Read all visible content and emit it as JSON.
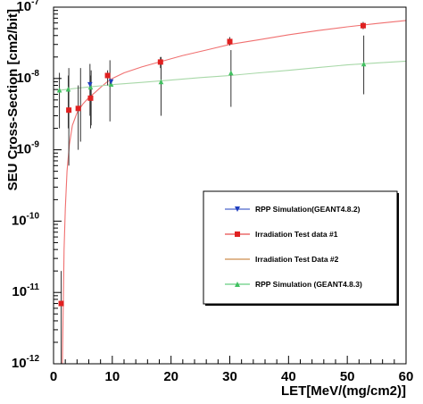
{
  "chart_data": {
    "type": "scatter",
    "xlabel": "LET[MeV/(mg/cm2)]",
    "ylabel": "SEU Cross-Section [cm2/bit]",
    "xlim": [
      0,
      60
    ],
    "ylim": [
      1e-12,
      1e-07
    ],
    "yscale": "log",
    "x_ticks": [
      "0",
      "10",
      "20",
      "30",
      "40",
      "50",
      "60"
    ],
    "y_ticks": [
      {
        "base": "10",
        "exp": "-12"
      },
      {
        "base": "10",
        "exp": "-11"
      },
      {
        "base": "10",
        "exp": "-10"
      },
      {
        "base": "10",
        "exp": "-9"
      },
      {
        "base": "10",
        "exp": "-8"
      },
      {
        "base": "10",
        "exp": "-7"
      }
    ],
    "grid": false,
    "legend_position": "center-right",
    "series": [
      {
        "name": "RPP Simulation(GEANT4.8.2)",
        "marker": "triangle-down",
        "color": "#1f3fbf",
        "points": [
          {
            "x": 6.2,
            "y": 8.2e-09,
            "yerr": [
              3e-09,
              1.6e-08
            ]
          },
          {
            "x": 9.8,
            "y": 9e-09
          }
        ]
      },
      {
        "name": "Irradiation Test data #1",
        "marker": "square",
        "color": "#e02020",
        "points": [
          {
            "x": 1.3,
            "y": 7e-12,
            "yerr": [
              1e-12,
              2e-11
            ]
          },
          {
            "x": 2.6,
            "y": 3.6e-09,
            "yerr": [
              6e-10,
              1.4e-08
            ]
          },
          {
            "x": 4.2,
            "y": 3.8e-09,
            "yerr": [
              1e-09,
              8e-09
            ]
          },
          {
            "x": 6.3,
            "y": 5.3e-09,
            "yerr": [
              2e-09,
              1.1e-08
            ]
          },
          {
            "x": 9.2,
            "y": 1.1e-08,
            "yerr": [
              8e-09,
              1.3e-08
            ]
          },
          {
            "x": 18.2,
            "y": 1.7e-08,
            "yerr": [
              1.4e-08,
              2e-08
            ]
          },
          {
            "x": 30.0,
            "y": 3.3e-08,
            "yerr": [
              2.9e-08,
              3.8e-08
            ]
          },
          {
            "x": 52.7,
            "y": 5.5e-08,
            "yerr": [
              4.9e-08,
              6.2e-08
            ]
          }
        ]
      },
      {
        "name": "Irradiation Test Data #2",
        "marker": "none",
        "color": "#1a1a1a",
        "points": [
          {
            "x": 1.0,
            "y": 6.8e-09,
            "yerr": [
              2e-09,
              1.2e-08
            ]
          },
          {
            "x": 2.5,
            "y": 7e-09,
            "yerr": [
              2e-09,
              1.1e-08
            ]
          },
          {
            "x": 4.6,
            "y": 7.5e-09,
            "yerr": [
              1.3e-09,
              1.4e-08
            ]
          },
          {
            "x": 6.4,
            "y": 7.8e-09,
            "yerr": [
              2.2e-09,
              1.3e-08
            ]
          },
          {
            "x": 9.6,
            "y": 8.2e-09,
            "yerr": [
              2.5e-09,
              1.8e-08
            ]
          },
          {
            "x": 18.3,
            "y": 9e-09,
            "yerr": [
              3e-09,
              2e-08
            ]
          },
          {
            "x": 30.2,
            "y": 1.2e-08,
            "yerr": [
              4e-09,
              2.5e-08
            ]
          },
          {
            "x": 52.8,
            "y": 1.6e-08,
            "yerr": [
              6e-09,
              4e-08
            ]
          }
        ]
      },
      {
        "name": "RPP Simulation (GEANT4.8.3)",
        "marker": "triangle-up",
        "color": "#40c060",
        "points": [
          {
            "x": 1.0,
            "y": 6.9e-09
          },
          {
            "x": 2.5,
            "y": 7.1e-09
          },
          {
            "x": 6.3,
            "y": 7.6e-09
          },
          {
            "x": 9.8,
            "y": 8.3e-09
          },
          {
            "x": 18.3,
            "y": 9e-09
          },
          {
            "x": 30.2,
            "y": 1.2e-08
          },
          {
            "x": 52.8,
            "y": 1.6e-08
          }
        ]
      }
    ],
    "fit_curves": [
      {
        "color": "#f07070",
        "points": [
          [
            1.5,
            1e-12
          ],
          [
            1.8,
            4e-11
          ],
          [
            2.0,
            1.5e-10
          ],
          [
            2.3,
            5e-10
          ],
          [
            2.7,
            1.2e-09
          ],
          [
            3.2,
            2.2e-09
          ],
          [
            4,
            3.3e-09
          ],
          [
            5,
            4.4e-09
          ],
          [
            6,
            5.4e-09
          ],
          [
            7,
            6.3e-09
          ],
          [
            8,
            7.5e-09
          ],
          [
            9,
            8.8e-09
          ],
          [
            10,
            1e-08
          ],
          [
            12,
            1.2e-08
          ],
          [
            15,
            1.45e-08
          ],
          [
            18,
            1.7e-08
          ],
          [
            22,
            2.1e-08
          ],
          [
            26,
            2.5e-08
          ],
          [
            30,
            3e-08
          ],
          [
            35,
            3.5e-08
          ],
          [
            40,
            4.1e-08
          ],
          [
            45,
            4.7e-08
          ],
          [
            50,
            5.3e-08
          ],
          [
            55,
            5.9e-08
          ],
          [
            60,
            6.5e-08
          ]
        ]
      },
      {
        "color": "#a8d8a8",
        "points": [
          [
            0.7,
            6.8e-09
          ],
          [
            2,
            7e-09
          ],
          [
            4,
            7.3e-09
          ],
          [
            6,
            7.6e-09
          ],
          [
            8,
            7.9e-09
          ],
          [
            10,
            8.2e-09
          ],
          [
            15,
            8.8e-09
          ],
          [
            20,
            9.5e-09
          ],
          [
            25,
            1.03e-08
          ],
          [
            30,
            1.1e-08
          ],
          [
            35,
            1.2e-08
          ],
          [
            40,
            1.3e-08
          ],
          [
            45,
            1.42e-08
          ],
          [
            50,
            1.55e-08
          ],
          [
            55,
            1.65e-08
          ],
          [
            60,
            1.75e-08
          ]
        ]
      }
    ]
  }
}
